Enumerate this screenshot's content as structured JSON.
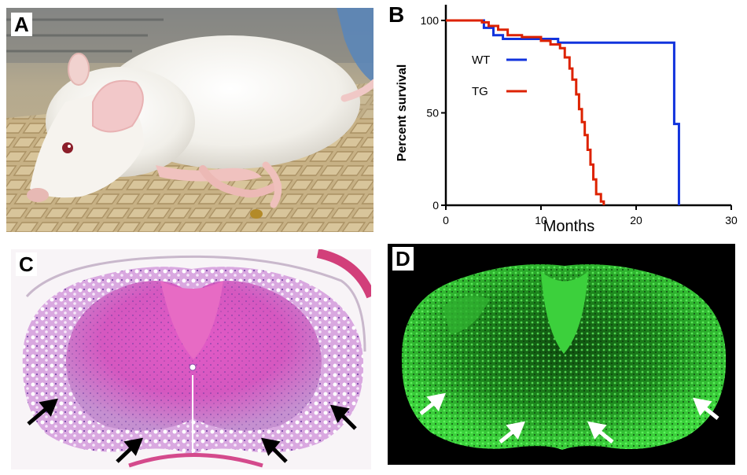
{
  "panels": {
    "a": {
      "label": "A"
    },
    "b": {
      "label": "B"
    },
    "c": {
      "label": "C"
    },
    "d": {
      "label": "D"
    }
  },
  "colors": {
    "wt": "#1133dd",
    "tg": "#dd2200",
    "he_pink": "#d24fb6",
    "fluor_green": "#3bd23b"
  },
  "chart_data": {
    "type": "line",
    "subtype": "kaplan-meier survival",
    "xlabel": "Months",
    "ylabel": "Percent survival",
    "xlim": [
      0,
      30
    ],
    "ylim": [
      0,
      100
    ],
    "xticks": [
      0,
      10,
      20,
      30
    ],
    "yticks": [
      0,
      50,
      100
    ],
    "grid": false,
    "legend_position": "upper-left inside",
    "series": [
      {
        "name": "WT",
        "color": "#1133dd",
        "points": [
          [
            0,
            100
          ],
          [
            4,
            100
          ],
          [
            4,
            96
          ],
          [
            5,
            96
          ],
          [
            5,
            92
          ],
          [
            6,
            92
          ],
          [
            6,
            90
          ],
          [
            11.8,
            90
          ],
          [
            11.8,
            88
          ],
          [
            24,
            88
          ],
          [
            24,
            44
          ],
          [
            24.5,
            44
          ],
          [
            24.5,
            0
          ]
        ]
      },
      {
        "name": "TG",
        "color": "#dd2200",
        "points": [
          [
            0,
            100
          ],
          [
            3.8,
            100
          ],
          [
            3.8,
            99
          ],
          [
            4.5,
            99
          ],
          [
            4.5,
            97
          ],
          [
            5.5,
            97
          ],
          [
            5.5,
            95
          ],
          [
            6.5,
            95
          ],
          [
            6.5,
            92
          ],
          [
            8,
            92
          ],
          [
            8,
            91
          ],
          [
            10,
            91
          ],
          [
            10,
            89
          ],
          [
            11,
            89
          ],
          [
            11,
            87
          ],
          [
            12,
            87
          ],
          [
            12,
            85
          ],
          [
            12.5,
            85
          ],
          [
            12.5,
            80
          ],
          [
            13,
            80
          ],
          [
            13,
            74
          ],
          [
            13.3,
            74
          ],
          [
            13.3,
            68
          ],
          [
            13.7,
            68
          ],
          [
            13.7,
            60
          ],
          [
            14,
            60
          ],
          [
            14,
            52
          ],
          [
            14.3,
            52
          ],
          [
            14.3,
            45
          ],
          [
            14.6,
            45
          ],
          [
            14.6,
            38
          ],
          [
            14.9,
            38
          ],
          [
            14.9,
            30
          ],
          [
            15.2,
            30
          ],
          [
            15.2,
            22
          ],
          [
            15.5,
            22
          ],
          [
            15.5,
            14
          ],
          [
            15.8,
            14
          ],
          [
            15.8,
            6
          ],
          [
            16.3,
            6
          ],
          [
            16.3,
            2
          ],
          [
            16.6,
            2
          ],
          [
            16.6,
            0
          ]
        ]
      }
    ]
  }
}
